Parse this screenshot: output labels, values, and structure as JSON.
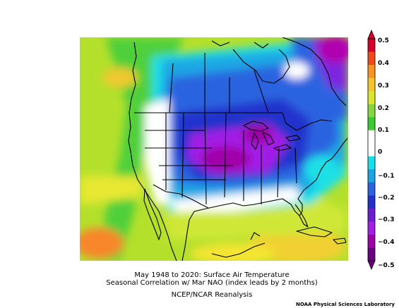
{
  "map": {
    "caption_line1": "May 1948 to 2020: Surface Air Temperature",
    "caption_line2": "Seasonal Correlation w/ Mar NAO (index leads by 2 months)",
    "dataset": "NCEP/NCAR Reanalysis",
    "credit": "NOAA Physical Sciences Laboratory",
    "region": "North America",
    "variable": "Surface Air Temperature correlation"
  },
  "colorbar": {
    "labels": [
      "0.5",
      "0.4",
      "0.3",
      "0.2",
      "0.1",
      "0",
      "−0.1",
      "−0.2",
      "−0.3",
      "−0.4",
      "−0.5"
    ],
    "colors": [
      "#d6002a",
      "#f04a1a",
      "#f89222",
      "#f5c52c",
      "#d9e82f",
      "#88d63f",
      "#3ccb33",
      "#ffffff",
      "#ffffff",
      "#19e0e6",
      "#1aa4e4",
      "#2a62e0",
      "#2230cc",
      "#6a1ed0",
      "#a41ee6",
      "#a000a8",
      "#6a0080"
    ]
  }
}
